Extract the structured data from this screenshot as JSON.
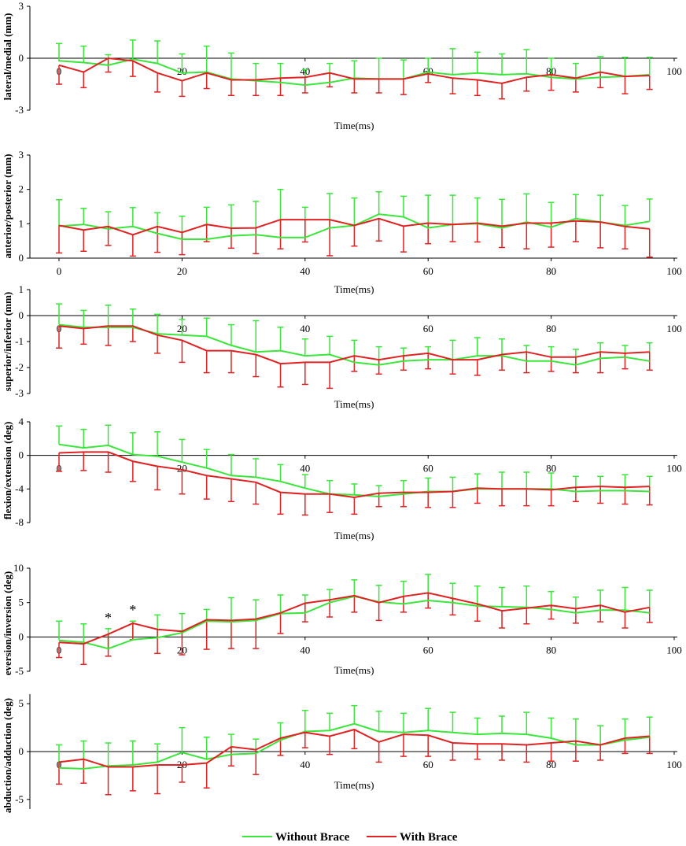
{
  "chart_data": {
    "type": "line",
    "x": [
      0,
      4,
      8,
      12,
      16,
      20,
      24,
      28,
      32,
      36,
      40,
      44,
      48,
      52,
      56,
      60,
      64,
      68,
      72,
      76,
      80,
      84,
      88,
      92,
      96
    ],
    "xlim": [
      0,
      100
    ],
    "xticks": [
      "0",
      "20",
      "40",
      "60",
      "80",
      "100"
    ],
    "legend": [
      {
        "name": "Without Brace",
        "color": "#39e639"
      },
      {
        "name": "With Brace",
        "color": "#e02222"
      }
    ],
    "panels": [
      {
        "ylabel": "lateral/medial (mm)",
        "xlabel": "Time(ms)",
        "ylim": [
          -3,
          3
        ],
        "yticks": [
          "3",
          "0",
          "-3"
        ],
        "xaxis_at_zero": true,
        "stars": [],
        "series": [
          {
            "name": "Without Brace",
            "values": [
              -0.15,
              -0.25,
              -0.4,
              -0.05,
              -0.3,
              -0.85,
              -0.8,
              -1.2,
              -1.3,
              -1.4,
              -1.55,
              -1.4,
              -1.15,
              -1.2,
              -1.2,
              -0.8,
              -0.95,
              -0.85,
              -0.95,
              -0.9,
              -1.1,
              -1.2,
              -1.1,
              -1.05,
              -0.95
            ],
            "err": [
              1.0,
              0.95,
              0.6,
              1.1,
              1.3,
              1.1,
              1.5,
              1.5,
              1.0,
              1.1,
              0.9,
              1.1,
              1.0,
              1.2,
              1.1,
              0.8,
              1.5,
              1.2,
              1.2,
              1.4,
              1.1,
              0.9,
              1.2,
              1.1,
              1.0
            ]
          },
          {
            "name": "With Brace",
            "values": [
              -0.4,
              -0.8,
              0.0,
              -0.15,
              -0.85,
              -1.3,
              -0.85,
              -1.25,
              -1.25,
              -1.15,
              -1.1,
              -0.85,
              -1.2,
              -1.2,
              -1.2,
              -0.9,
              -1.15,
              -1.25,
              -1.45,
              -1.1,
              -0.95,
              -1.15,
              -0.8,
              -1.05,
              -1.0
            ],
            "err": [
              1.1,
              0.9,
              0.8,
              0.9,
              1.1,
              0.9,
              0.9,
              0.9,
              0.9,
              1.0,
              0.9,
              0.8,
              0.8,
              0.8,
              0.9,
              0.5,
              0.9,
              0.9,
              0.9,
              0.8,
              0.9,
              0.8,
              0.9,
              1.0,
              0.8
            ]
          }
        ]
      },
      {
        "ylabel": "anterior/posterior (mm)",
        "xlabel": "Time(ms)",
        "ylim": [
          0,
          3
        ],
        "yticks": [
          "3",
          "2",
          "1",
          "0"
        ],
        "xaxis_at_zero": false,
        "stars": [],
        "series": [
          {
            "name": "Without Brace",
            "values": [
              0.93,
              0.98,
              0.85,
              0.92,
              0.72,
              0.55,
              0.55,
              0.65,
              0.68,
              0.6,
              0.6,
              0.88,
              0.95,
              1.28,
              1.2,
              0.88,
              0.98,
              1.0,
              0.88,
              1.05,
              0.9,
              1.15,
              1.05,
              0.95,
              1.07
            ],
            "err": [
              0.77,
              0.47,
              0.5,
              0.55,
              0.6,
              0.67,
              0.93,
              0.9,
              0.97,
              1.4,
              0.88,
              1.0,
              0.8,
              0.65,
              0.6,
              0.95,
              0.85,
              0.75,
              0.83,
              0.82,
              0.72,
              0.7,
              0.78,
              0.58,
              0.65
            ]
          },
          {
            "name": "With Brace",
            "values": [
              0.95,
              0.82,
              0.92,
              0.68,
              0.92,
              0.75,
              0.98,
              0.87,
              0.88,
              1.12,
              1.12,
              1.12,
              0.95,
              1.15,
              0.93,
              1.02,
              0.98,
              1.02,
              0.93,
              1.02,
              1.02,
              1.08,
              1.05,
              0.92,
              0.85
            ],
            "err": [
              0.8,
              0.62,
              0.55,
              0.62,
              0.75,
              0.65,
              0.5,
              0.58,
              0.75,
              0.85,
              0.65,
              1.05,
              0.6,
              0.65,
              0.75,
              0.6,
              0.5,
              0.55,
              0.62,
              0.75,
              0.7,
              0.6,
              0.75,
              0.65,
              0.82
            ]
          }
        ]
      },
      {
        "ylabel": "superior/inferior (mm)",
        "xlabel": "Time(ms)",
        "ylim": [
          -3,
          1
        ],
        "yticks": [
          "1",
          "0",
          "-1",
          "-2",
          "-3"
        ],
        "xaxis_at_zero": true,
        "stars": [],
        "series": [
          {
            "name": "Without Brace",
            "values": [
              -0.35,
              -0.45,
              -0.45,
              -0.45,
              -0.7,
              -0.75,
              -0.8,
              -1.15,
              -1.4,
              -1.35,
              -1.55,
              -1.5,
              -1.8,
              -1.9,
              -1.75,
              -1.7,
              -1.7,
              -1.55,
              -1.55,
              -1.75,
              -1.75,
              -1.9,
              -1.65,
              -1.6,
              -1.75
            ],
            "err": [
              0.8,
              0.65,
              0.85,
              0.7,
              0.75,
              0.6,
              0.7,
              0.8,
              1.2,
              0.9,
              0.65,
              0.7,
              0.85,
              0.7,
              0.5,
              0.5,
              0.75,
              0.7,
              0.65,
              0.6,
              0.55,
              0.6,
              0.6,
              0.45,
              0.7
            ]
          },
          {
            "name": "With Brace",
            "values": [
              -0.4,
              -0.5,
              -0.4,
              -0.4,
              -0.75,
              -0.95,
              -1.35,
              -1.35,
              -1.5,
              -1.85,
              -1.8,
              -1.8,
              -1.55,
              -1.7,
              -1.55,
              -1.45,
              -1.7,
              -1.7,
              -1.5,
              -1.4,
              -1.6,
              -1.6,
              -1.4,
              -1.45,
              -1.4
            ],
            "err": [
              0.85,
              0.6,
              0.75,
              0.6,
              0.7,
              0.85,
              0.85,
              0.85,
              0.85,
              0.9,
              0.85,
              1.0,
              0.6,
              0.55,
              0.55,
              0.6,
              0.55,
              0.6,
              0.6,
              0.8,
              0.55,
              0.6,
              0.8,
              0.6,
              0.7
            ]
          }
        ]
      },
      {
        "ylabel": "flexion/extension (deg)",
        "xlabel": "Time(ms)",
        "ylim": [
          -8,
          4
        ],
        "yticks": [
          "4",
          "0",
          "-4",
          "-8"
        ],
        "xaxis_at_zero": true,
        "stars": [],
        "series": [
          {
            "name": "Without Brace",
            "values": [
              1.3,
              0.9,
              1.2,
              0.1,
              -0.1,
              -0.8,
              -1.5,
              -2.4,
              -2.6,
              -3.1,
              -3.9,
              -4.6,
              -4.7,
              -4.9,
              -4.6,
              -4.3,
              -4.3,
              -4.0,
              -4.0,
              -4.0,
              -4.0,
              -4.3,
              -4.2,
              -4.2,
              -4.3
            ],
            "err": [
              2.2,
              2.2,
              2.4,
              2.6,
              2.9,
              2.7,
              2.2,
              2.5,
              2.2,
              2.0,
              1.6,
              1.6,
              1.3,
              1.3,
              1.6,
              1.6,
              1.7,
              1.8,
              2.0,
              2.0,
              1.9,
              1.8,
              1.7,
              1.9,
              1.8
            ]
          },
          {
            "name": "With Brace",
            "values": [
              0.3,
              0.4,
              0.4,
              -0.7,
              -1.3,
              -1.7,
              -2.4,
              -2.8,
              -3.2,
              -4.4,
              -4.6,
              -4.6,
              -5.0,
              -4.5,
              -4.4,
              -4.4,
              -4.3,
              -3.9,
              -4.0,
              -4.0,
              -4.1,
              -3.8,
              -3.7,
              -3.8,
              -3.7
            ],
            "err": [
              2.2,
              2.2,
              2.4,
              2.4,
              2.8,
              2.9,
              2.8,
              2.7,
              2.6,
              2.6,
              2.5,
              2.2,
              2.0,
              1.6,
              1.7,
              1.8,
              1.9,
              1.8,
              2.0,
              2.0,
              1.9,
              1.7,
              2.0,
              2.0,
              2.2
            ]
          }
        ]
      },
      {
        "ylabel": "eversion/inversion (deg)",
        "xlabel": "Time(ms)",
        "ylim": [
          -5,
          10
        ],
        "yticks": [
          "10",
          "5",
          "0",
          "-5"
        ],
        "xaxis_at_zero": true,
        "stars": [
          {
            "x": 8,
            "label": "*"
          },
          {
            "x": 12,
            "label": "*"
          }
        ],
        "series": [
          {
            "name": "Without Brace",
            "values": [
              -0.5,
              -0.8,
              -1.7,
              -0.4,
              -0.1,
              0.6,
              2.3,
              2.2,
              2.4,
              3.4,
              3.5,
              5.0,
              5.9,
              5.1,
              4.8,
              5.3,
              5.0,
              4.5,
              4.4,
              4.3,
              4.0,
              3.5,
              3.9,
              3.9,
              3.5
            ],
            "err": [
              2.8,
              2.7,
              2.9,
              2.7,
              3.3,
              2.8,
              1.7,
              3.5,
              3.0,
              2.7,
              2.6,
              1.9,
              2.4,
              2.4,
              3.3,
              3.8,
              2.8,
              2.9,
              2.8,
              3.1,
              2.6,
              2.3,
              2.9,
              3.3,
              3.3
            ]
          },
          {
            "name": "With Brace",
            "values": [
              -0.8,
              -1.0,
              0.4,
              2.0,
              1.1,
              0.8,
              2.5,
              2.4,
              2.6,
              3.5,
              4.9,
              5.4,
              6.0,
              5.0,
              5.9,
              6.4,
              5.6,
              4.8,
              3.8,
              4.2,
              4.6,
              4.1,
              4.6,
              3.6,
              4.3
            ],
            "err": [
              2.2,
              3.0,
              3.2,
              2.4,
              3.5,
              3.4,
              4.3,
              4.1,
              4.3,
              3.0,
              2.7,
              2.5,
              2.4,
              2.6,
              2.3,
              2.2,
              2.4,
              2.5,
              2.5,
              2.3,
              2.0,
              2.1,
              2.4,
              2.3,
              2.2
            ]
          }
        ]
      },
      {
        "ylabel": "abduction/adduction (deg)",
        "xlabel": "Time(ms)",
        "ylim": [
          -6,
          6
        ],
        "yticks": [
          "5",
          "0",
          "-5"
        ],
        "xaxis_at_zero": true,
        "stars": [],
        "series": [
          {
            "name": "Without Brace",
            "values": [
              -1.7,
              -1.8,
              -1.5,
              -1.4,
              -1.1,
              -0.1,
              -0.8,
              -0.3,
              -0.2,
              1.2,
              2.1,
              2.2,
              2.9,
              2.1,
              2.0,
              2.2,
              2.0,
              1.8,
              1.9,
              1.8,
              1.4,
              0.7,
              0.7,
              1.2,
              1.5
            ],
            "err": [
              2.4,
              2.9,
              2.4,
              2.5,
              1.9,
              2.6,
              2.3,
              2.1,
              1.5,
              1.8,
              2.2,
              1.8,
              1.9,
              2.1,
              2.0,
              2.3,
              2.1,
              1.7,
              1.8,
              2.3,
              2.1,
              2.7,
              2.0,
              2.2,
              2.1
            ]
          },
          {
            "name": "With Brace",
            "values": [
              -1.1,
              -0.8,
              -1.6,
              -1.6,
              -1.4,
              -1.4,
              -1.2,
              0.5,
              0.2,
              1.4,
              2.0,
              1.6,
              2.3,
              1.0,
              1.8,
              1.7,
              0.9,
              0.8,
              0.8,
              0.7,
              0.9,
              1.1,
              0.7,
              1.4,
              1.6
            ],
            "err": [
              2.3,
              2.5,
              2.9,
              2.5,
              3.0,
              1.8,
              2.6,
              2.0,
              2.6,
              1.8,
              1.6,
              1.9,
              2.0,
              2.1,
              2.3,
              2.2,
              1.8,
              1.6,
              1.7,
              1.8,
              1.9,
              2.1,
              1.6,
              1.6,
              1.8
            ]
          }
        ]
      }
    ]
  }
}
